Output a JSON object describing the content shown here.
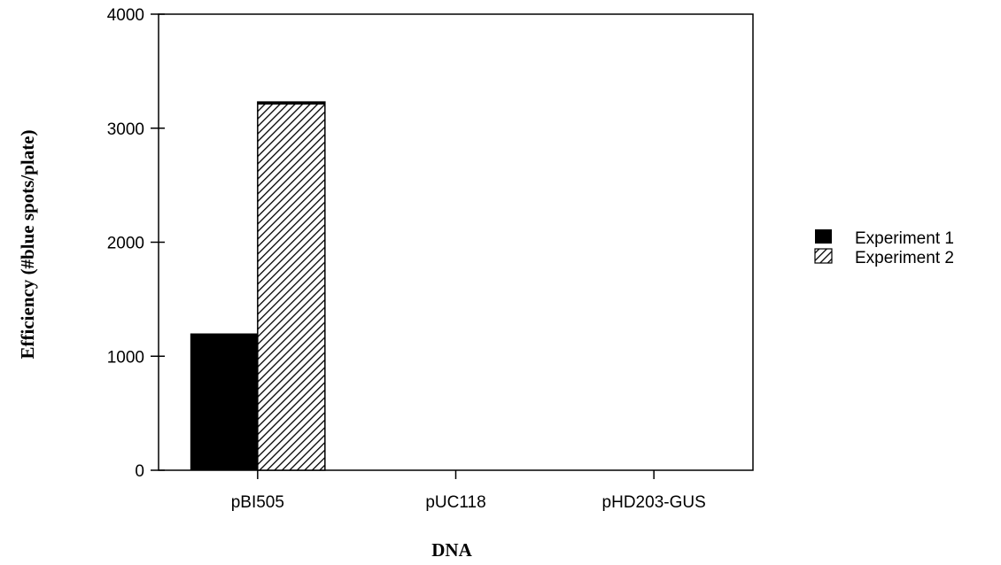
{
  "chart_data": {
    "type": "bar",
    "title": "",
    "xlabel": "DNA",
    "ylabel": "Efficiency (#blue spots/plate)",
    "categories": [
      "pBI505",
      "pUC118",
      "pHD203-GUS"
    ],
    "series": [
      {
        "name": "Experiment 1",
        "values": [
          1200,
          0,
          0
        ],
        "color": "#000000",
        "pattern": "solid"
      },
      {
        "name": "Experiment 2",
        "values": [
          3230,
          0,
          0
        ],
        "color": "#000000",
        "pattern": "diagonal-hatch"
      }
    ],
    "ylim": [
      0,
      4000
    ],
    "yticks": [
      0,
      1000,
      2000,
      3000,
      4000
    ],
    "grid": false,
    "legend_position": "right"
  }
}
